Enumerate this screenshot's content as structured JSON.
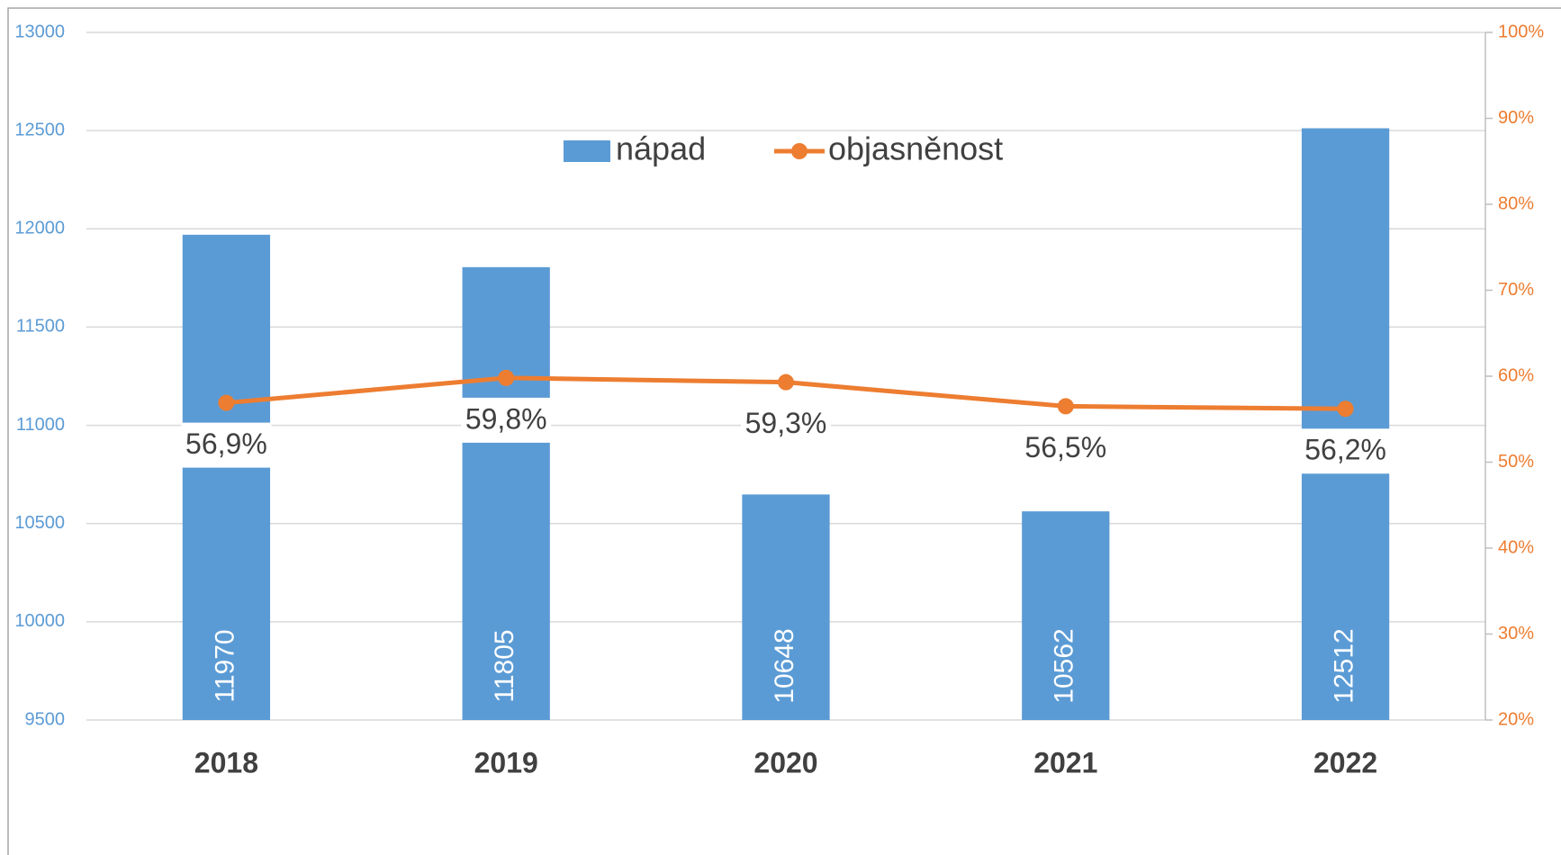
{
  "chart_data": {
    "type": "bar-line",
    "categories": [
      "2018",
      "2019",
      "2020",
      "2021",
      "2022"
    ],
    "series": [
      {
        "name": "nápad",
        "color": "#5b9bd5",
        "values": [
          11970,
          11805,
          10648,
          10562,
          12512
        ]
      },
      {
        "name": "objasněnost",
        "color": "#ed7d31",
        "axis": "y2",
        "values": [
          56.9,
          59.8,
          59.3,
          56.5,
          56.2
        ],
        "value_labels": [
          "56,9%",
          "59,8%",
          "59,3%",
          "56,5%",
          "56,2%"
        ]
      }
    ],
    "ylim": [
      9500,
      13000
    ],
    "yticks": [
      9500,
      10000,
      10500,
      11000,
      11500,
      12000,
      12500,
      13000
    ],
    "y2lim": [
      20,
      100
    ],
    "y2ticks": [
      {
        "value": 20,
        "label": "20%"
      },
      {
        "value": 30,
        "label": "30%"
      },
      {
        "value": 40,
        "label": "40%"
      },
      {
        "value": 50,
        "label": "50%"
      },
      {
        "value": 60,
        "label": "60%"
      },
      {
        "value": 70,
        "label": "70%"
      },
      {
        "value": 80,
        "label": "80%"
      },
      {
        "value": 90,
        "label": "90%"
      },
      {
        "value": 100,
        "label": "100%"
      }
    ],
    "grid": true,
    "legend": "top"
  }
}
